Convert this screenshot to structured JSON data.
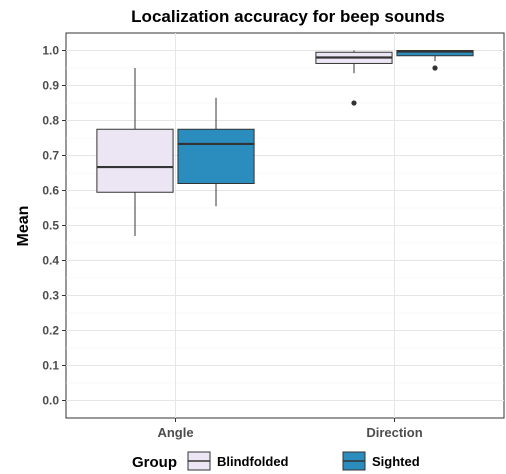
{
  "chart_data": {
    "type": "box",
    "title": "Localization accuracy for beep sounds",
    "xlabel": "",
    "ylabel": "Mean",
    "ylim": [
      -0.05,
      1.05
    ],
    "yticks": [
      "0.0",
      "0.1",
      "0.2",
      "0.3",
      "0.4",
      "0.5",
      "0.6",
      "0.7",
      "0.8",
      "0.9",
      "1.0"
    ],
    "categories": [
      "Angle",
      "Direction"
    ],
    "grid": true,
    "legend_position": "bottom",
    "legend_title": "Group",
    "series": [
      {
        "name": "Blindfolded",
        "color": "#ece6f4",
        "boxes": [
          {
            "category": "Angle",
            "whisker_low": 0.47,
            "q1": 0.595,
            "median": 0.667,
            "q3": 0.775,
            "whisker_high": 0.95,
            "outliers": []
          },
          {
            "category": "Direction",
            "whisker_low": 0.935,
            "q1": 0.963,
            "median": 0.98,
            "q3": 0.995,
            "whisker_high": 1.0,
            "outliers": [
              0.85
            ]
          }
        ]
      },
      {
        "name": "Sighted",
        "color": "#2b8cbe",
        "boxes": [
          {
            "category": "Angle",
            "whisker_low": 0.555,
            "q1": 0.62,
            "median": 0.733,
            "q3": 0.775,
            "whisker_high": 0.865,
            "outliers": []
          },
          {
            "category": "Direction",
            "whisker_low": 0.97,
            "q1": 0.985,
            "median": 0.997,
            "q3": 1.0,
            "whisker_high": 1.0,
            "outliers": [
              0.95
            ]
          }
        ]
      }
    ]
  }
}
